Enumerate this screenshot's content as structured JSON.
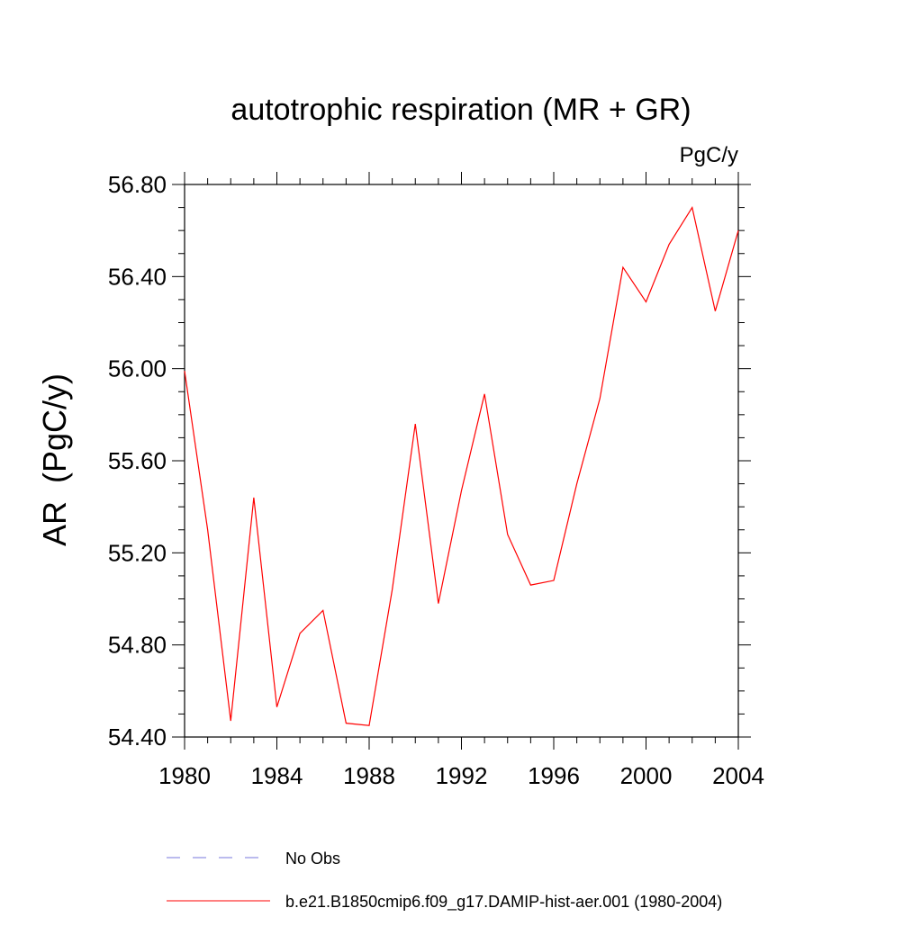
{
  "chart_data": {
    "type": "line",
    "title": "autotrophic respiration (MR + GR)",
    "units_label": "PgC/y",
    "ylabel": "AR  (PgC/y)",
    "xlabel": "",
    "xlim": [
      1980,
      2004
    ],
    "ylim": [
      54.4,
      56.8
    ],
    "x_ticks": [
      1980,
      1984,
      1988,
      1992,
      1996,
      2000,
      2004
    ],
    "x_tick_labels": [
      "1980",
      "1984",
      "1988",
      "1992",
      "1996",
      "2000",
      "2004"
    ],
    "y_ticks": [
      54.4,
      54.8,
      55.2,
      55.6,
      56.0,
      56.4,
      56.8
    ],
    "y_tick_labels": [
      "54.40",
      "54.80",
      "55.20",
      "55.60",
      "56.00",
      "56.40",
      "56.80"
    ],
    "grid": false,
    "legend_position": "bottom",
    "series": [
      {
        "name": "b.e21.B1850cmip6.f09_g17.DAMIP-hist-aer.001 (1980-2004)",
        "color": "#ff0000",
        "style": "solid",
        "x": [
          1980,
          1981,
          1982,
          1983,
          1984,
          1985,
          1986,
          1987,
          1988,
          1989,
          1990,
          1991,
          1992,
          1993,
          1994,
          1995,
          1996,
          1997,
          1998,
          1999,
          2000,
          2001,
          2002,
          2003,
          2004
        ],
        "values": [
          55.99,
          55.3,
          54.47,
          55.44,
          54.53,
          54.85,
          54.95,
          54.46,
          54.45,
          55.04,
          55.76,
          54.98,
          55.47,
          55.89,
          55.28,
          55.06,
          55.08,
          55.5,
          55.87,
          56.44,
          56.29,
          56.54,
          56.7,
          56.25,
          56.6
        ]
      }
    ],
    "legend": [
      {
        "label": "No Obs",
        "color": "#7777dd",
        "style": "dashed"
      },
      {
        "label": "b.e21.B1850cmip6.f09_g17.DAMIP-hist-aer.001 (1980-2004)",
        "color": "#ff0000",
        "style": "solid"
      }
    ]
  }
}
